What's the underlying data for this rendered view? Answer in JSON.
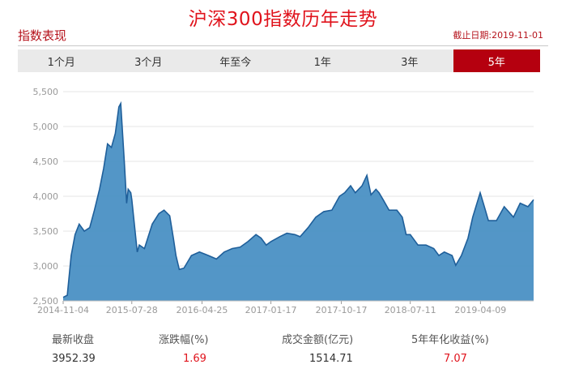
{
  "header": {
    "title": "沪深300指数历年走势",
    "section_label": "指数表现",
    "as_of": "截止日期:2019-11-01"
  },
  "tabs": [
    {
      "label": "1个月",
      "active": false
    },
    {
      "label": "3个月",
      "active": false
    },
    {
      "label": "年至今",
      "active": false
    },
    {
      "label": "1年",
      "active": false
    },
    {
      "label": "3年",
      "active": false
    },
    {
      "label": "5年",
      "active": true
    }
  ],
  "colors": {
    "accent": "#e0131c",
    "active_tab": "#b5000f",
    "area_fill": "#4a90c4",
    "area_line": "#1f5f9a"
  },
  "stats": {
    "latest_close_label": "最新收盘",
    "latest_close": "3952.39",
    "change_pct_label": "涨跌幅(%)",
    "change_pct": "1.69",
    "turnover_label": "成交金额(亿元)",
    "turnover": "1514.71",
    "annualized_label": "5年年化收益(%)",
    "annualized": "7.07"
  },
  "chart_data": {
    "type": "area",
    "title": "",
    "xlabel": "",
    "ylabel": "",
    "ylim": [
      2500,
      5500
    ],
    "yticks": [
      2500,
      3000,
      3500,
      4000,
      4500,
      5000,
      5500
    ],
    "ytick_labels": [
      "2,500",
      "3,000",
      "3,500",
      "4,000",
      "4,500",
      "5,000",
      "5,500"
    ],
    "xlim": [
      "2014-11-04",
      "2019-11-01"
    ],
    "xticks": [
      "2014-11-04",
      "2015-07-28",
      "2016-04-25",
      "2017-01-17",
      "2017-10-17",
      "2018-07-11",
      "2019-04-09"
    ],
    "grid": true,
    "series": [
      {
        "x": [
          "2014-11-04",
          "2014-11-20",
          "2014-12-05",
          "2014-12-20",
          "2015-01-05",
          "2015-01-25",
          "2015-02-15",
          "2015-03-05",
          "2015-03-25",
          "2015-04-10",
          "2015-04-25",
          "2015-05-10",
          "2015-05-25",
          "2015-06-08",
          "2015-06-15",
          "2015-06-29",
          "2015-07-08",
          "2015-07-14",
          "2015-07-24",
          "2015-07-28",
          "2015-08-18",
          "2015-08-26",
          "2015-09-15",
          "2015-10-15",
          "2015-11-10",
          "2015-11-30",
          "2015-12-22",
          "2016-01-05",
          "2016-01-15",
          "2016-01-28",
          "2016-02-15",
          "2016-03-15",
          "2016-04-15",
          "2016-05-20",
          "2016-06-20",
          "2016-07-20",
          "2016-08-20",
          "2016-09-20",
          "2016-10-20",
          "2016-11-20",
          "2016-12-10",
          "2016-12-30",
          "2017-01-17",
          "2017-02-20",
          "2017-03-20",
          "2017-04-20",
          "2017-05-10",
          "2017-06-10",
          "2017-07-10",
          "2017-08-10",
          "2017-09-10",
          "2017-10-10",
          "2017-10-30",
          "2017-11-22",
          "2017-12-10",
          "2018-01-05",
          "2018-01-24",
          "2018-02-09",
          "2018-02-28",
          "2018-03-12",
          "2018-03-28",
          "2018-04-20",
          "2018-05-20",
          "2018-06-10",
          "2018-06-25",
          "2018-07-11",
          "2018-08-10",
          "2018-09-10",
          "2018-10-10",
          "2018-10-30",
          "2018-11-20",
          "2018-12-20",
          "2019-01-03",
          "2019-01-25",
          "2019-02-20",
          "2019-03-10",
          "2019-04-08",
          "2019-04-20",
          "2019-05-10",
          "2019-06-10",
          "2019-07-10",
          "2019-08-15",
          "2019-09-10",
          "2019-10-10",
          "2019-11-01"
        ],
        "values": [
          2550,
          2580,
          3150,
          3450,
          3600,
          3500,
          3550,
          3800,
          4100,
          4400,
          4750,
          4700,
          4900,
          5280,
          5330,
          4500,
          3900,
          4100,
          4050,
          3950,
          3200,
          3300,
          3250,
          3600,
          3750,
          3800,
          3720,
          3400,
          3150,
          2950,
          2970,
          3150,
          3200,
          3150,
          3100,
          3200,
          3250,
          3270,
          3350,
          3450,
          3400,
          3300,
          3350,
          3420,
          3470,
          3450,
          3420,
          3550,
          3700,
          3780,
          3800,
          4000,
          4050,
          4150,
          4050,
          4150,
          4300,
          4020,
          4100,
          4050,
          3950,
          3800,
          3800,
          3700,
          3450,
          3450,
          3300,
          3300,
          3250,
          3150,
          3200,
          3150,
          3010,
          3150,
          3400,
          3700,
          4050,
          3900,
          3650,
          3650,
          3850,
          3700,
          3900,
          3850,
          3950
        ]
      }
    ]
  }
}
